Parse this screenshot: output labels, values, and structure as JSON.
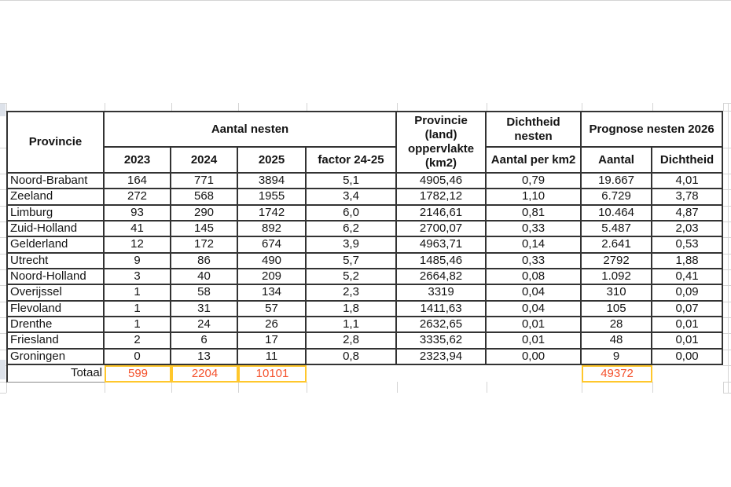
{
  "sheet": {
    "header": {
      "provincie": "Provincie",
      "aantal_nesten": "Aantal nesten",
      "year_2023": "2023",
      "year_2024": "2024",
      "year_2025": "2025",
      "factor": "factor 24-25",
      "oppervlakte": "Provincie (land) oppervlakte (km2)",
      "dichtheid_nesten": "Dichtheid nesten",
      "aantal_per_km2": "Aantal per km2",
      "prognose_2026": "Prognose nesten 2026",
      "prognose_aantal": "Aantal",
      "prognose_dichtheid": "Dichtheid"
    },
    "rows": [
      [
        "Noord-Brabant",
        "164",
        "771",
        "3894",
        "5,1",
        "4905,46",
        "0,79",
        "19.667",
        "4,01"
      ],
      [
        "Zeeland",
        "272",
        "568",
        "1955",
        "3,4",
        "1782,12",
        "1,10",
        "6.729",
        "3,78"
      ],
      [
        "Limburg",
        "93",
        "290",
        "1742",
        "6,0",
        "2146,61",
        "0,81",
        "10.464",
        "4,87"
      ],
      [
        "Zuid-Holland",
        "41",
        "145",
        "892",
        "6,2",
        "2700,07",
        "0,33",
        "5.487",
        "2,03"
      ],
      [
        "Gelderland",
        "12",
        "172",
        "674",
        "3,9",
        "4963,71",
        "0,14",
        "2.641",
        "0,53"
      ],
      [
        "Utrecht",
        "9",
        "86",
        "490",
        "5,7",
        "1485,46",
        "0,33",
        "2792",
        "1,88"
      ],
      [
        "Noord-Holland",
        "3",
        "40",
        "209",
        "5,2",
        "2664,82",
        "0,08",
        "1.092",
        "0,41"
      ],
      [
        "Overijssel",
        "1",
        "58",
        "134",
        "2,3",
        "3319",
        "0,04",
        "310",
        "0,09"
      ],
      [
        "Flevoland",
        "1",
        "31",
        "57",
        "1,8",
        "1411,63",
        "0,04",
        "105",
        "0,07"
      ],
      [
        "Drenthe",
        "1",
        "24",
        "26",
        "1,1",
        "2632,65",
        "0,01",
        "28",
        "0,01"
      ],
      [
        "Friesland",
        "2",
        "6",
        "17",
        "2,8",
        "3335,62",
        "0,01",
        "48",
        "0,01"
      ],
      [
        "Groningen",
        "0",
        "13",
        "11",
        "0,8",
        "2323,94",
        "0,00",
        "9",
        "0,00"
      ]
    ],
    "total_row": {
      "label": "Totaal",
      "y2023": "599",
      "y2024": "2204",
      "y2025": "10101",
      "prognose_aantal": "49372"
    }
  },
  "colors": {
    "table_border": "#333333",
    "total_text": "#f4512c",
    "total_cell_border": "#ffc72c",
    "gridline": "#d4d4d4"
  }
}
